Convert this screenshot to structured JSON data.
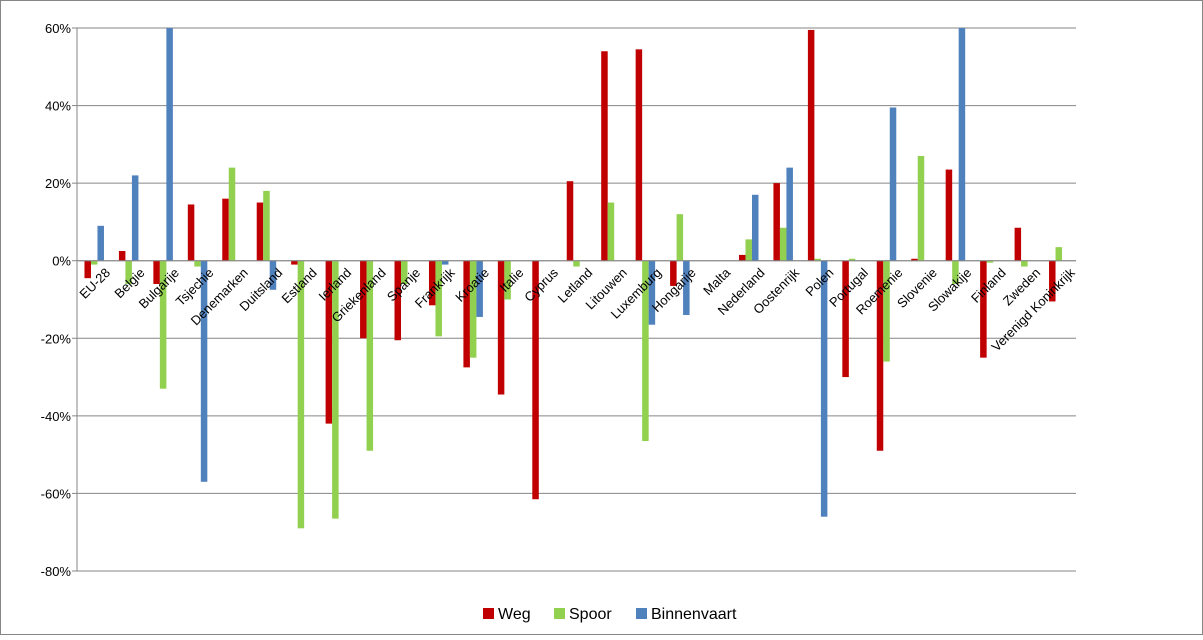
{
  "colors": {
    "weg": "#c00000",
    "spoor": "#92d050",
    "binnenvaart": "#4f81bd",
    "grid": "#868686",
    "frame": "#868686"
  },
  "chart_data": {
    "type": "bar",
    "categories": [
      "EU-28",
      "Belgie",
      "Bulgarije",
      "Tsjechie",
      "Denemarken",
      "Duitsland",
      "Estland",
      "Ierland",
      "Griekenland",
      "Spanje",
      "Frankrijk",
      "Kroatie",
      "Italie",
      "Cyprus",
      "Letland",
      "Litouwen",
      "Luxemburg",
      "Hongarije",
      "Malta",
      "Nederland",
      "Oostenrijk",
      "Polen",
      "Portugal",
      "Roemenie",
      "Slovenie",
      "Slowakije",
      "Finland",
      "Zweden",
      "Verenigd Koninkrijk"
    ],
    "series": [
      {
        "name": "Weg",
        "values": [
          -4.5,
          2.5,
          -6,
          14.5,
          16,
          15,
          -1,
          -42,
          -20,
          -20.5,
          -11.5,
          -27.5,
          -34.5,
          -61.5,
          20.5,
          54,
          54.5,
          -6.5,
          0,
          1.5,
          20,
          59.5,
          -30,
          -49,
          0.5,
          23.5,
          -25,
          8.5,
          -10.5
        ]
      },
      {
        "name": "Spoor",
        "values": [
          -1,
          -6,
          -33,
          -1.5,
          24,
          18,
          -69,
          -66.5,
          -49,
          -6,
          -19.5,
          -25,
          -10,
          0,
          -1.5,
          15,
          -46.5,
          12,
          0,
          5.5,
          8.5,
          0.5,
          0.5,
          -26,
          27,
          -6,
          -0.5,
          -1.5,
          3.5
        ]
      },
      {
        "name": "Binnenvaart",
        "values": [
          9,
          22,
          60,
          -57,
          0,
          -7.5,
          0,
          0,
          0,
          0,
          -1,
          -14.5,
          0,
          0,
          0,
          0,
          -16.5,
          -14,
          0,
          17,
          24,
          -66,
          0,
          39.5,
          0,
          60,
          0,
          0,
          0
        ]
      }
    ],
    "ylim": [
      -80,
      60
    ],
    "yticks": [
      60,
      40,
      20,
      0,
      -20,
      -40,
      -60,
      -80
    ],
    "ytick_labels": [
      "60%",
      "40%",
      "20%",
      "0%",
      "-20%",
      "-40%",
      "-60%",
      "-80%"
    ],
    "grid": true,
    "legend_position": "bottom",
    "xlabel": "",
    "ylabel": "",
    "title": ""
  }
}
